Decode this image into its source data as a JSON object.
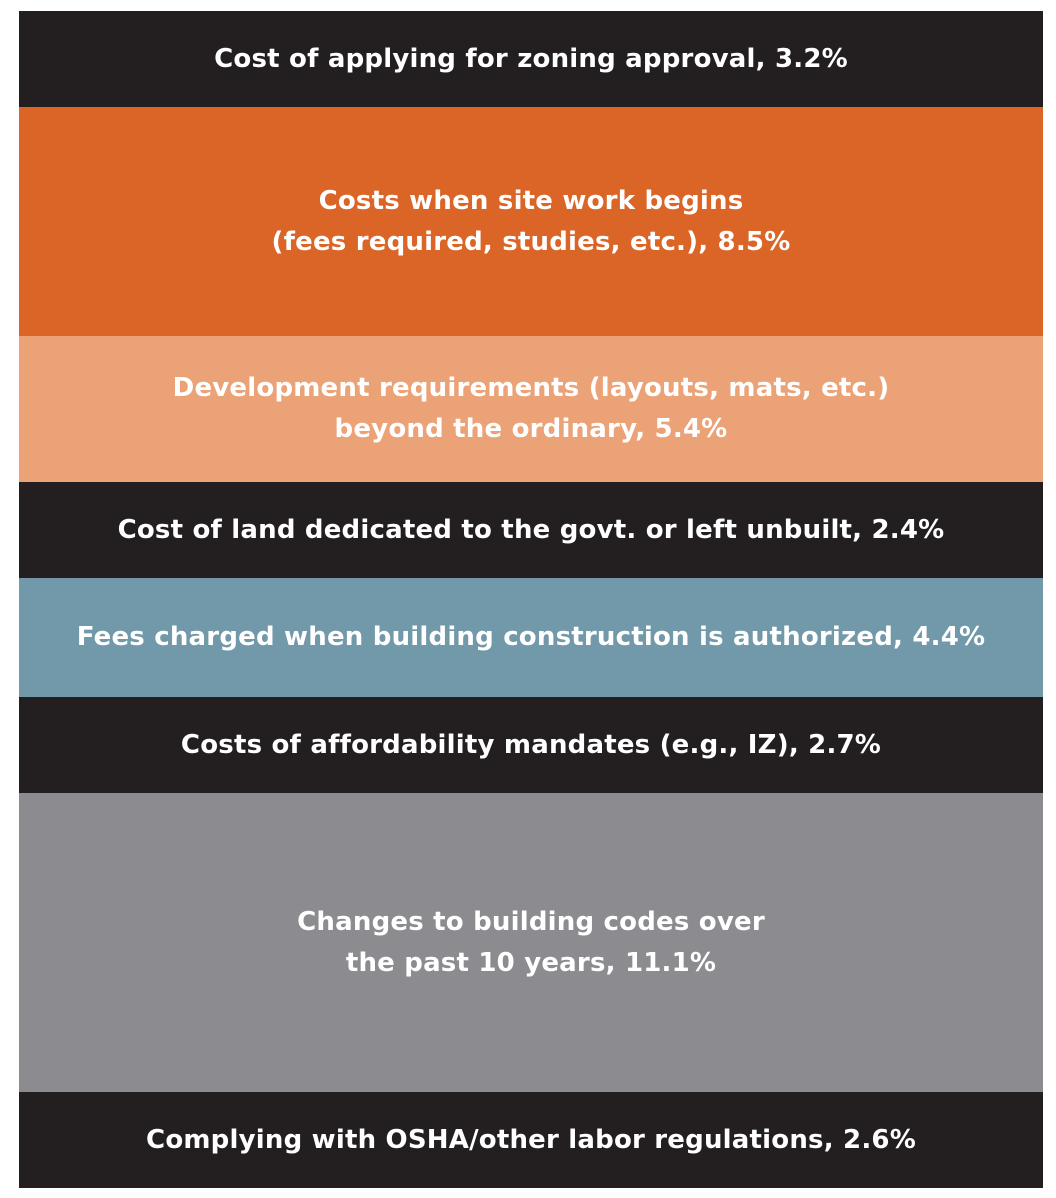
{
  "chart_data": {
    "type": "stacked-bar",
    "unit": "%",
    "segments": [
      {
        "lines": [
          "Cost of applying for zoning approval, 3.2%"
        ],
        "value": 3.2,
        "color": "#231f20"
      },
      {
        "lines": [
          "Costs when site work begins",
          "(fees required, studies, etc.), 8.5%"
        ],
        "value": 8.5,
        "color": "#db6427"
      },
      {
        "lines": [
          "Development requirements (layouts, mats, etc.)",
          "beyond the ordinary, 5.4%"
        ],
        "value": 5.4,
        "color": "#eca277"
      },
      {
        "lines": [
          "Cost of land dedicated to the govt. or left unbuilt, 2.4%"
        ],
        "value": 2.4,
        "color": "#231f20"
      },
      {
        "lines": [
          "Fees charged when building construction is authorized, 4.4%"
        ],
        "value": 4.4,
        "color": "#7299aa"
      },
      {
        "lines": [
          "Costs of affordability mandates (e.g., IZ), 2.7%"
        ],
        "value": 2.7,
        "color": "#231f20"
      },
      {
        "lines": [
          "Changes to building codes over",
          "the past 10 years, 11.1%"
        ],
        "value": 11.1,
        "color": "#8c8c90"
      },
      {
        "lines": [
          "Complying with OSHA/other labor regulations, 2.6%"
        ],
        "value": 2.6,
        "color": "#231f20"
      }
    ]
  }
}
